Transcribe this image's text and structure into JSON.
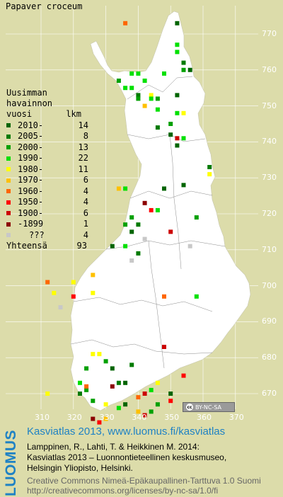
{
  "title": "Papaver croceum",
  "legend": {
    "heading": [
      "Uusimman",
      "havainnon"
    ],
    "col_year": "vuosi",
    "col_count": "lkm",
    "rows": [
      {
        "label": "2010-",
        "count": "14",
        "color": "#006400"
      },
      {
        "label": "2005-",
        "count": "8",
        "color": "#007a00"
      },
      {
        "label": "2000-",
        "count": "13",
        "color": "#00a000"
      },
      {
        "label": "1990-",
        "count": "22",
        "color": "#00e000"
      },
      {
        "label": "1980-",
        "count": "11",
        "color": "#ffff00"
      },
      {
        "label": "1970-",
        "count": "6",
        "color": "#ffc000"
      },
      {
        "label": "1960-",
        "count": "4",
        "color": "#ff6600"
      },
      {
        "label": "1950-",
        "count": "4",
        "color": "#ff0000"
      },
      {
        "label": "1900-",
        "count": "6",
        "color": "#cc0000"
      },
      {
        "label": "-1899",
        "count": "1",
        "color": "#8b0000"
      },
      {
        "label": "???",
        "count": "4",
        "color": "#c8c8c8"
      }
    ],
    "total_label": "Yhteensä",
    "total_count": "93"
  },
  "y_ticks": [
    "770",
    "760",
    "750",
    "740",
    "730",
    "720",
    "710",
    "700",
    "690",
    "680",
    "670"
  ],
  "x_ticks": [
    "310",
    "320",
    "330",
    "340",
    "350",
    "360",
    "370"
  ],
  "cc_badge": "BY-NC-SA",
  "brand": "LUOMUS",
  "credits": {
    "line1": "Kasviatlas 2013, www.luomus.fi/kasviatlas",
    "line2": "Lamppinen, R., Lahti, T. & Heikkinen M. 2014:",
    "line3": "Kasviatlas 2013 – Luonnontieteellinen keskusmuseo,",
    "line4": "Helsingin Yliopisto, Helsinki.",
    "line5": "Creative Commons Nimeä-Epäkaupallinen-Tarttuva 1.0 Suomi",
    "line6": "http://creativecommons.org/licenses/by-nc-sa/1.0/fi"
  },
  "colors": {
    "background": "#dcdcaa",
    "land": "#ffffff",
    "accent": "#1f82c4"
  },
  "observations": [
    {
      "e": 336,
      "n": 773,
      "c": 6
    },
    {
      "e": 352,
      "n": 773,
      "c": 0
    },
    {
      "e": 352,
      "n": 767,
      "c": 3
    },
    {
      "e": 352,
      "n": 765,
      "c": 3
    },
    {
      "e": 354,
      "n": 762,
      "c": 1
    },
    {
      "e": 356,
      "n": 760,
      "c": 0
    },
    {
      "e": 354,
      "n": 760,
      "c": 2
    },
    {
      "e": 338,
      "n": 759,
      "c": 3
    },
    {
      "e": 340,
      "n": 759,
      "c": 3
    },
    {
      "e": 348,
      "n": 759,
      "c": 3
    },
    {
      "e": 334,
      "n": 757,
      "c": 2
    },
    {
      "e": 342,
      "n": 757,
      "c": 3
    },
    {
      "e": 336,
      "n": 755,
      "c": 3
    },
    {
      "e": 338,
      "n": 755,
      "c": 3
    },
    {
      "e": 340,
      "n": 753,
      "c": 1
    },
    {
      "e": 344,
      "n": 753,
      "c": 4
    },
    {
      "e": 340,
      "n": 752,
      "c": 2
    },
    {
      "e": 344,
      "n": 752,
      "c": 3
    },
    {
      "e": 346,
      "n": 752,
      "c": 2
    },
    {
      "e": 352,
      "n": 753,
      "c": 0
    },
    {
      "e": 342,
      "n": 750,
      "c": 5
    },
    {
      "e": 346,
      "n": 749,
      "c": 3
    },
    {
      "e": 352,
      "n": 748,
      "c": 3
    },
    {
      "e": 354,
      "n": 748,
      "c": 4
    },
    {
      "e": 350,
      "n": 745,
      "c": 2
    },
    {
      "e": 346,
      "n": 744,
      "c": 1
    },
    {
      "e": 350,
      "n": 742,
      "c": 0
    },
    {
      "e": 352,
      "n": 741,
      "c": 8
    },
    {
      "e": 354,
      "n": 741,
      "c": 3
    },
    {
      "e": 352,
      "n": 739,
      "c": 0
    },
    {
      "e": 362,
      "n": 733,
      "c": 1
    },
    {
      "e": 362,
      "n": 731,
      "c": 4
    },
    {
      "e": 354,
      "n": 728,
      "c": 0
    },
    {
      "e": 334,
      "n": 727,
      "c": 5
    },
    {
      "e": 348,
      "n": 727,
      "c": 0
    },
    {
      "e": 336,
      "n": 727,
      "c": 3
    },
    {
      "e": 342,
      "n": 723,
      "c": 9
    },
    {
      "e": 344,
      "n": 721,
      "c": 7
    },
    {
      "e": 346,
      "n": 721,
      "c": 3
    },
    {
      "e": 338,
      "n": 719,
      "c": 2
    },
    {
      "e": 336,
      "n": 717,
      "c": 2
    },
    {
      "e": 340,
      "n": 717,
      "c": 1
    },
    {
      "e": 338,
      "n": 715,
      "c": 0
    },
    {
      "e": 358,
      "n": 719,
      "c": 2
    },
    {
      "e": 350,
      "n": 715,
      "c": 8
    },
    {
      "e": 342,
      "n": 713,
      "c": 10
    },
    {
      "e": 332,
      "n": 711,
      "c": 0
    },
    {
      "e": 336,
      "n": 711,
      "c": 3
    },
    {
      "e": 340,
      "n": 709,
      "c": 1
    },
    {
      "e": 338,
      "n": 707,
      "c": 10
    },
    {
      "e": 356,
      "n": 711,
      "c": 10
    },
    {
      "e": 312,
      "n": 701,
      "c": 6
    },
    {
      "e": 320,
      "n": 701,
      "c": 4
    },
    {
      "e": 326,
      "n": 703,
      "c": 5
    },
    {
      "e": 314,
      "n": 698,
      "c": 4
    },
    {
      "e": 320,
      "n": 697,
      "c": 7
    },
    {
      "e": 326,
      "n": 698,
      "c": 4
    },
    {
      "e": 348,
      "n": 697,
      "c": 6
    },
    {
      "e": 358,
      "n": 697,
      "c": 3
    },
    {
      "e": 316,
      "n": 694,
      "c": 10
    },
    {
      "e": 348,
      "n": 683,
      "c": 8
    },
    {
      "e": 326,
      "n": 681,
      "c": 4
    },
    {
      "e": 328,
      "n": 681,
      "c": 4
    },
    {
      "e": 330,
      "n": 679,
      "c": 2
    },
    {
      "e": 332,
      "n": 677,
      "c": 0
    },
    {
      "e": 338,
      "n": 678,
      "c": 1
    },
    {
      "e": 324,
      "n": 677,
      "c": 2
    },
    {
      "e": 322,
      "n": 673,
      "c": 3
    },
    {
      "e": 324,
      "n": 671,
      "c": 2
    },
    {
      "e": 332,
      "n": 672,
      "c": 9
    },
    {
      "e": 334,
      "n": 673,
      "c": 1
    },
    {
      "e": 336,
      "n": 673,
      "c": 0
    },
    {
      "e": 340,
      "n": 669,
      "c": 6
    },
    {
      "e": 342,
      "n": 670,
      "c": 8
    },
    {
      "e": 344,
      "n": 671,
      "c": 3
    },
    {
      "e": 346,
      "n": 667,
      "c": 2
    },
    {
      "e": 346,
      "n": 673,
      "c": 4
    },
    {
      "e": 350,
      "n": 670,
      "c": 0
    },
    {
      "e": 354,
      "n": 675,
      "c": 7
    },
    {
      "e": 312,
      "n": 670,
      "c": 4
    },
    {
      "e": 322,
      "n": 670,
      "c": 1
    },
    {
      "e": 326,
      "n": 668,
      "c": 2
    },
    {
      "e": 330,
      "n": 667,
      "c": 4
    },
    {
      "e": 334,
      "n": 666,
      "c": 3
    },
    {
      "e": 336,
      "n": 667,
      "c": 0
    },
    {
      "e": 340,
      "n": 665,
      "c": 5
    },
    {
      "e": 342,
      "n": 664,
      "c": 8
    },
    {
      "e": 350,
      "n": 668,
      "c": 7
    },
    {
      "e": 326,
      "n": 663,
      "c": 9
    },
    {
      "e": 328,
      "n": 662,
      "c": 7
    },
    {
      "e": 330,
      "n": 663,
      "c": 5
    },
    {
      "e": 324,
      "n": 672,
      "c": 6
    },
    {
      "e": 344,
      "n": 665,
      "c": 2
    }
  ]
}
